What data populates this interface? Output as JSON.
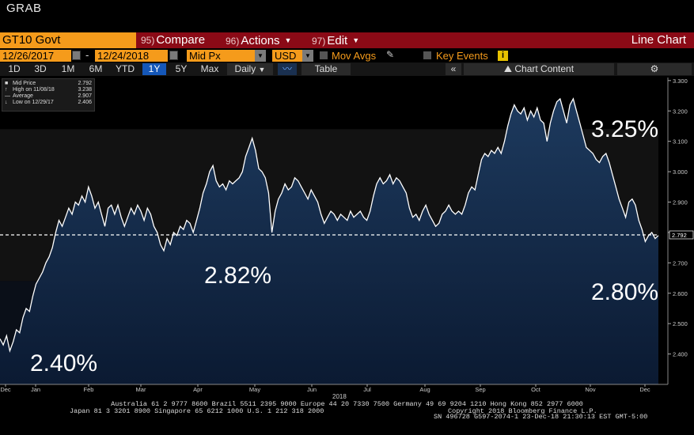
{
  "app_label": "GRAB",
  "toolbar": {
    "security": "GT10 Govt",
    "compare": {
      "num": "95)",
      "label": "Compare"
    },
    "actions": {
      "num": "96)",
      "label": "Actions"
    },
    "edit": {
      "num": "97)",
      "label": "Edit"
    },
    "view": "Line Chart"
  },
  "params": {
    "start_date": "12/26/2017",
    "dash": "-",
    "end_date": "12/24/2018",
    "field": "Mid Px",
    "currency": "USD",
    "mov_avgs": "Mov Avgs",
    "key_events": "Key Events"
  },
  "periods": [
    "1D",
    "3D",
    "1M",
    "6M",
    "YTD",
    "1Y",
    "5Y",
    "Max"
  ],
  "selected_period": "1Y",
  "frequency": "Daily",
  "table_label": "Table",
  "chart_content_label": "Chart Content",
  "legend": {
    "rows": [
      {
        "label": "Mid Price",
        "value": "2.792"
      },
      {
        "label": "High on 11/08/18",
        "value": "3.238"
      },
      {
        "label": "Average",
        "value": "2.907"
      },
      {
        "label": "Low on 12/29/17",
        "value": "2.406"
      }
    ]
  },
  "chart_data": {
    "type": "area",
    "title": "",
    "xlabel": "2018",
    "ylabel": "",
    "ylim": [
      2.3,
      3.31
    ],
    "y_ticks": [
      "3.300",
      "3.200",
      "3.100",
      "3.000",
      "2.900",
      "2.800",
      "2.700",
      "2.600",
      "2.500",
      "2.400"
    ],
    "x_tick_labels": [
      "Dec",
      "Jan",
      "Feb",
      "Mar",
      "Apr",
      "May",
      "Jun",
      "Jul",
      "Aug",
      "Sep",
      "Oct",
      "Nov",
      "Dec"
    ],
    "series": [
      {
        "values": [
          2.45,
          2.43,
          2.46,
          2.41,
          2.44,
          2.48,
          2.47,
          2.52,
          2.55,
          2.54,
          2.59,
          2.63,
          2.65,
          2.67,
          2.7,
          2.72,
          2.75,
          2.8,
          2.84,
          2.82,
          2.85,
          2.88,
          2.86,
          2.9,
          2.89,
          2.92,
          2.9,
          2.95,
          2.92,
          2.88,
          2.9,
          2.86,
          2.82,
          2.88,
          2.89,
          2.86,
          2.89,
          2.85,
          2.82,
          2.85,
          2.88,
          2.86,
          2.89,
          2.87,
          2.84,
          2.88,
          2.86,
          2.82,
          2.8,
          2.76,
          2.74,
          2.78,
          2.76,
          2.8,
          2.79,
          2.82,
          2.81,
          2.84,
          2.83,
          2.8,
          2.84,
          2.88,
          2.93,
          2.96,
          3.0,
          3.02,
          2.97,
          2.95,
          2.96,
          2.94,
          2.97,
          2.96,
          2.97,
          2.98,
          3.0,
          3.05,
          3.08,
          3.11,
          3.07,
          3.01,
          3.0,
          2.98,
          2.93,
          2.8,
          2.87,
          2.91,
          2.93,
          2.96,
          2.94,
          2.95,
          2.98,
          2.97,
          2.95,
          2.93,
          2.91,
          2.94,
          2.92,
          2.9,
          2.86,
          2.83,
          2.85,
          2.87,
          2.86,
          2.84,
          2.86,
          2.85,
          2.84,
          2.87,
          2.85,
          2.86,
          2.87,
          2.85,
          2.84,
          2.87,
          2.92,
          2.96,
          2.98,
          2.96,
          2.97,
          2.99,
          2.96,
          2.98,
          2.97,
          2.95,
          2.93,
          2.88,
          2.85,
          2.86,
          2.84,
          2.87,
          2.89,
          2.86,
          2.84,
          2.82,
          2.83,
          2.86,
          2.87,
          2.89,
          2.87,
          2.86,
          2.87,
          2.86,
          2.89,
          2.93,
          2.95,
          2.94,
          2.99,
          3.04,
          3.06,
          3.05,
          3.07,
          3.06,
          3.08,
          3.06,
          3.1,
          3.15,
          3.19,
          3.22,
          3.2,
          3.19,
          3.21,
          3.17,
          3.2,
          3.18,
          3.21,
          3.17,
          3.16,
          3.1,
          3.16,
          3.2,
          3.23,
          3.24,
          3.2,
          3.16,
          3.22,
          3.24,
          3.2,
          3.16,
          3.12,
          3.08,
          3.07,
          3.06,
          3.04,
          3.03,
          3.05,
          3.06,
          3.03,
          2.99,
          2.95,
          2.91,
          2.88,
          2.85,
          2.9,
          2.91,
          2.89,
          2.84,
          2.81,
          2.77,
          2.79,
          2.8,
          2.78,
          2.79
        ]
      }
    ],
    "reference_line": {
      "value": 2.792,
      "label": "2.792",
      "style": "dashed"
    },
    "annotations": [
      "2.40%",
      "2.82%",
      "3.25%",
      "2.80%"
    ],
    "grid": false,
    "colors": {
      "line": "#ffffff",
      "fill_top": "#1d3a5e",
      "fill_bottom": "#0b1a32"
    }
  },
  "footer": {
    "line1": "Australia 61 2 9777 8600 Brazil 5511 2395 9000 Europe 44 20 7330 7500 Germany 49 69 9204 1210 Hong Kong 852 2977 6000",
    "line2": "Japan 81 3 3201 8900        Singapore 65 6212 1000        U.S. 1 212 318 2000",
    "line3": "Copyright 2018 Bloomberg Finance L.P.",
    "line4": "SN 496728 G597-2074-1 23-Dec-18 21:30:13 EST  GMT-5:00"
  },
  "colors": {
    "accent_orange": "#f59b1b",
    "toolbar_red": "#8b0a16",
    "selected_blue": "#1557b8"
  }
}
